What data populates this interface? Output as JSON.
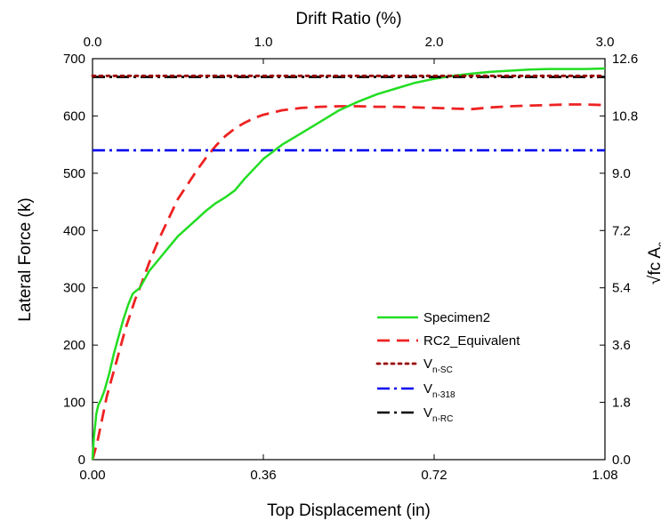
{
  "chart_data": {
    "type": "line",
    "xlabel": "Top Displacement (in)",
    "ylabel": "Lateral Force (k)",
    "top_xlabel": "Drift Ratio (%)",
    "right_ylabel": "√fc A",
    "x_ticks": [
      "0.00",
      "0.36",
      "0.72",
      "1.08"
    ],
    "x_tick_values": [
      0.0,
      0.36,
      0.72,
      1.08
    ],
    "y_ticks": [
      "0",
      "100",
      "200",
      "300",
      "400",
      "500",
      "600",
      "700"
    ],
    "y_tick_values": [
      0,
      100,
      200,
      300,
      400,
      500,
      600,
      700
    ],
    "top_ticks": [
      "0.0",
      "1.0",
      "2.0",
      "3.0"
    ],
    "top_tick_values": [
      0.0,
      1.0,
      2.0,
      3.0
    ],
    "right_ticks": [
      "0.0",
      "1.8",
      "3.6",
      "5.4",
      "7.2",
      "9.0",
      "10.8",
      "12.6"
    ],
    "right_tick_values": [
      0.0,
      1.8,
      3.6,
      5.4,
      7.2,
      9.0,
      10.8,
      12.6
    ],
    "xlim": [
      0,
      1.08
    ],
    "ylim": [
      0,
      700
    ],
    "grid": false,
    "legend_position": "lower-right",
    "series": [
      {
        "name": "Specimen2",
        "color": "#22dd22",
        "style": "solid",
        "x": [
          0.0,
          0.003,
          0.008,
          0.012,
          0.018,
          0.025,
          0.035,
          0.045,
          0.055,
          0.065,
          0.075,
          0.085,
          0.1,
          0.12,
          0.14,
          0.16,
          0.18,
          0.2,
          0.22,
          0.24,
          0.26,
          0.28,
          0.3,
          0.32,
          0.36,
          0.4,
          0.44,
          0.48,
          0.52,
          0.56,
          0.6,
          0.64,
          0.68,
          0.72,
          0.76,
          0.8,
          0.84,
          0.88,
          0.92,
          0.96,
          1.0,
          1.04,
          1.08
        ],
        "y": [
          0,
          40,
          80,
          95,
          105,
          120,
          150,
          185,
          215,
          245,
          270,
          290,
          300,
          330,
          350,
          370,
          390,
          405,
          420,
          435,
          448,
          458,
          470,
          490,
          525,
          550,
          570,
          590,
          610,
          625,
          638,
          648,
          658,
          665,
          670,
          674,
          677,
          679,
          681,
          682,
          682,
          682,
          683
        ]
      },
      {
        "name": "RC2_Equivalent",
        "color": "#ee2222",
        "style": "dashed",
        "x": [
          0.0,
          0.01,
          0.02,
          0.03,
          0.04,
          0.05,
          0.06,
          0.07,
          0.08,
          0.09,
          0.1,
          0.12,
          0.14,
          0.16,
          0.18,
          0.2,
          0.22,
          0.24,
          0.26,
          0.28,
          0.3,
          0.32,
          0.34,
          0.36,
          0.38,
          0.4,
          0.44,
          0.48,
          0.52,
          0.56,
          0.6,
          0.64,
          0.68,
          0.72,
          0.76,
          0.8,
          0.84,
          0.88,
          0.92,
          0.96,
          1.0,
          1.04,
          1.08
        ],
        "y": [
          0,
          30,
          70,
          110,
          140,
          170,
          200,
          230,
          255,
          280,
          300,
          345,
          385,
          420,
          455,
          480,
          505,
          528,
          548,
          565,
          578,
          588,
          596,
          602,
          606,
          610,
          614,
          616,
          617,
          617,
          616,
          616,
          615,
          614,
          613,
          612,
          615,
          617,
          618,
          619,
          620,
          620,
          619
        ]
      },
      {
        "name": "V",
        "subscript": "n-SC",
        "color": "#990000",
        "style": "dotted",
        "x": [
          0.0,
          1.08
        ],
        "y": [
          670,
          670
        ]
      },
      {
        "name": "V",
        "subscript": "n-318",
        "color": "#0000ee",
        "style": "dashdot",
        "x": [
          0.0,
          1.08
        ],
        "y": [
          540,
          540
        ]
      },
      {
        "name": "V",
        "subscript": "n-RC",
        "color": "#000000",
        "style": "dashdot",
        "x": [
          0.0,
          1.08
        ],
        "y": [
          668,
          668
        ]
      }
    ]
  }
}
